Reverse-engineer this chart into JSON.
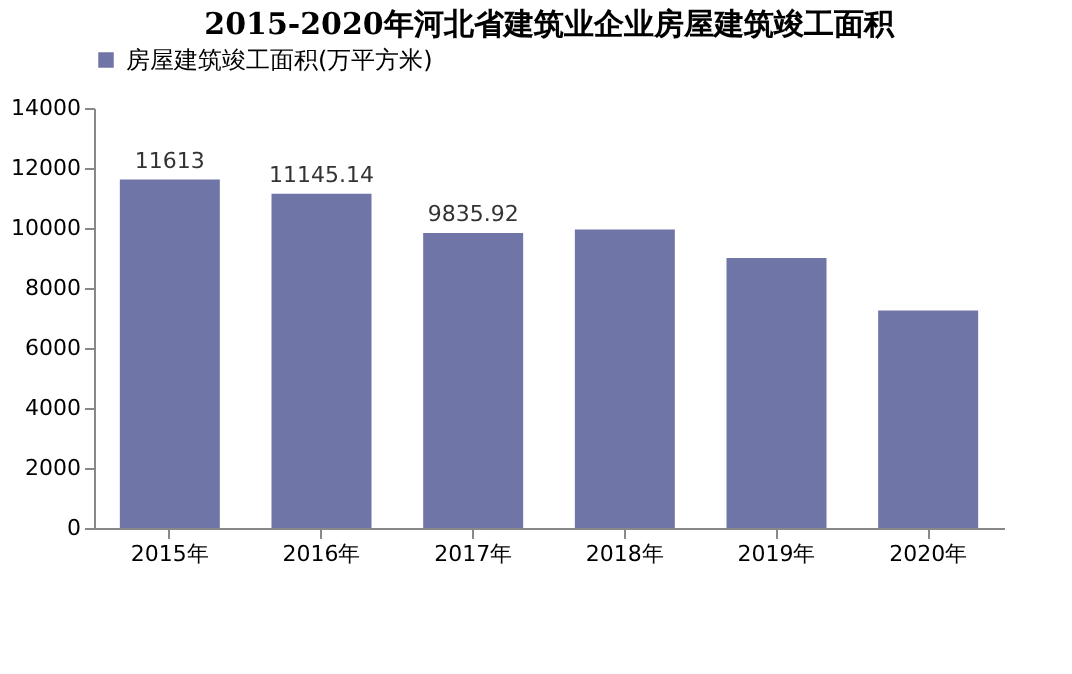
{
  "chart_data": {
    "type": "bar",
    "title": "2015-2020年河北省建筑业企业房屋建筑竣工面积",
    "categories": [
      "2015年",
      "2016年",
      "2017年",
      "2018年",
      "2019年",
      "2020年"
    ],
    "series": [
      {
        "name": "房屋建筑竣工面积(万平方米)",
        "color": "#7075a8",
        "values": [
          11613,
          11145.14,
          9835.92,
          9950,
          9000,
          7250
        ],
        "value_labels": [
          "11613",
          "11145.14",
          "9835.92",
          null,
          null,
          null
        ]
      }
    ],
    "ylim": [
      0,
      14000
    ],
    "yticks": [
      0,
      2000,
      4000,
      6000,
      8000,
      10000,
      12000,
      14000
    ],
    "grid": false,
    "legend": "top"
  }
}
